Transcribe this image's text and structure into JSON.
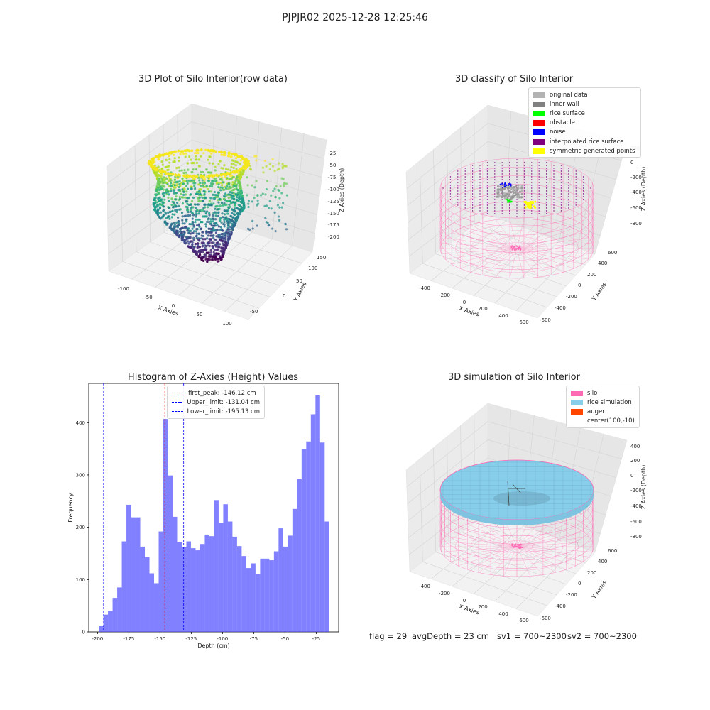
{
  "suptitle": "PJPJR02 2025-12-28 12:25:46",
  "status": {
    "flag": "flag = 29",
    "avg_depth": "avgDepth = 23 cm",
    "sv1": "sv1 = 700~2300",
    "sv2": "sv2 = 700~2300"
  },
  "chart_data": [
    {
      "type": "scatter",
      "title": "3D Plot of Silo Interior(row data)",
      "xlabel": "X Axies",
      "ylabel": "Y Axies",
      "zlabel": "Z Axies (Depth)",
      "x_ticks": [
        "-100",
        "-50",
        "0",
        "50",
        "100"
      ],
      "y_ticks": [
        "-50",
        "0",
        "50",
        "100",
        "150"
      ],
      "z_ticks": [
        "-25",
        "-50",
        "-75",
        "-100",
        "-125",
        "-150",
        "-175",
        "-200"
      ],
      "colormap": "viridis",
      "grid": true
    },
    {
      "type": "scatter",
      "title": "3D classify of Silo Interior",
      "xlabel": "X Axies",
      "ylabel": "Y Axies",
      "zlabel": "Z Axies (Depth)",
      "x_ticks": [
        "-400",
        "-200",
        "0",
        "200",
        "400",
        "600"
      ],
      "y_ticks": [
        "-600",
        "-400",
        "-200",
        "0",
        "200",
        "400",
        "600"
      ],
      "z_ticks": [
        "200",
        "0",
        "-200",
        "-400",
        "-600",
        "-800"
      ],
      "legend_position": "top-right",
      "legend": [
        {
          "label": "original data",
          "color": "#b3b3b3"
        },
        {
          "label": "inner wall",
          "color": "#808080"
        },
        {
          "label": "rice surface",
          "color": "#00ff00"
        },
        {
          "label": "obstacle",
          "color": "#ff0000"
        },
        {
          "label": "noise",
          "color": "#0000ff"
        },
        {
          "label": "interpolated rice surface",
          "color": "#800080"
        },
        {
          "label": "symmetric generated points",
          "color": "#ffff00"
        }
      ]
    },
    {
      "type": "bar",
      "title": "Histogram of Z-Axies (Height) Values",
      "xlabel": "Depth (cm)",
      "ylabel": "Frequency",
      "xlim": [
        -207,
        -7
      ],
      "ylim": [
        0,
        475
      ],
      "x_ticks": [
        "-200",
        "-175",
        "-150",
        "-125",
        "-100",
        "-75",
        "-50",
        "-25"
      ],
      "y_ticks": [
        "0",
        "100",
        "200",
        "300",
        "400"
      ],
      "bin_start": -199.0,
      "bin_width": 3.69,
      "values": [
        12,
        33,
        40,
        65,
        85,
        173,
        243,
        219,
        219,
        163,
        143,
        112,
        93,
        192,
        407,
        299,
        220,
        171,
        162,
        173,
        160,
        156,
        168,
        186,
        183,
        252,
        209,
        244,
        211,
        182,
        164,
        145,
        122,
        131,
        110,
        140,
        140,
        137,
        154,
        198,
        163,
        184,
        235,
        292,
        350,
        364,
        416,
        452,
        362,
        211
      ],
      "color": "#4c4cff",
      "bar_alpha": 0.7,
      "legend_position": "top-center",
      "lines": [
        {
          "label": "first_peak: -146.12 cm",
          "x": -146.12,
          "color": "#ff0000"
        },
        {
          "label": "Upper_limit: -131.04 cm",
          "x": -131.04,
          "color": "#0000ff"
        },
        {
          "label": "Lower_limit: -195.13 cm",
          "x": -195.13,
          "color": "#0000ff"
        }
      ]
    },
    {
      "type": "scatter",
      "title": "3D simulation of Silo Interior",
      "xlabel": "X Axies",
      "ylabel": "Y Axies",
      "zlabel": "Z Axies (Depth)",
      "x_ticks": [
        "-400",
        "-200",
        "0",
        "200",
        "400",
        "600"
      ],
      "y_ticks": [
        "-600",
        "-400",
        "-200",
        "0",
        "200",
        "400",
        "600"
      ],
      "z_ticks": [
        "400",
        "200",
        "0",
        "-200",
        "-400",
        "-600",
        "-800"
      ],
      "legend_position": "top-right",
      "legend": [
        {
          "label": "silo",
          "color": "#ff69b4"
        },
        {
          "label": "rice simulation",
          "color": "#87ceeb"
        },
        {
          "label": "auger",
          "color": "#ff4500"
        },
        {
          "label": "center(100,-10)",
          "color": ""
        }
      ]
    }
  ]
}
